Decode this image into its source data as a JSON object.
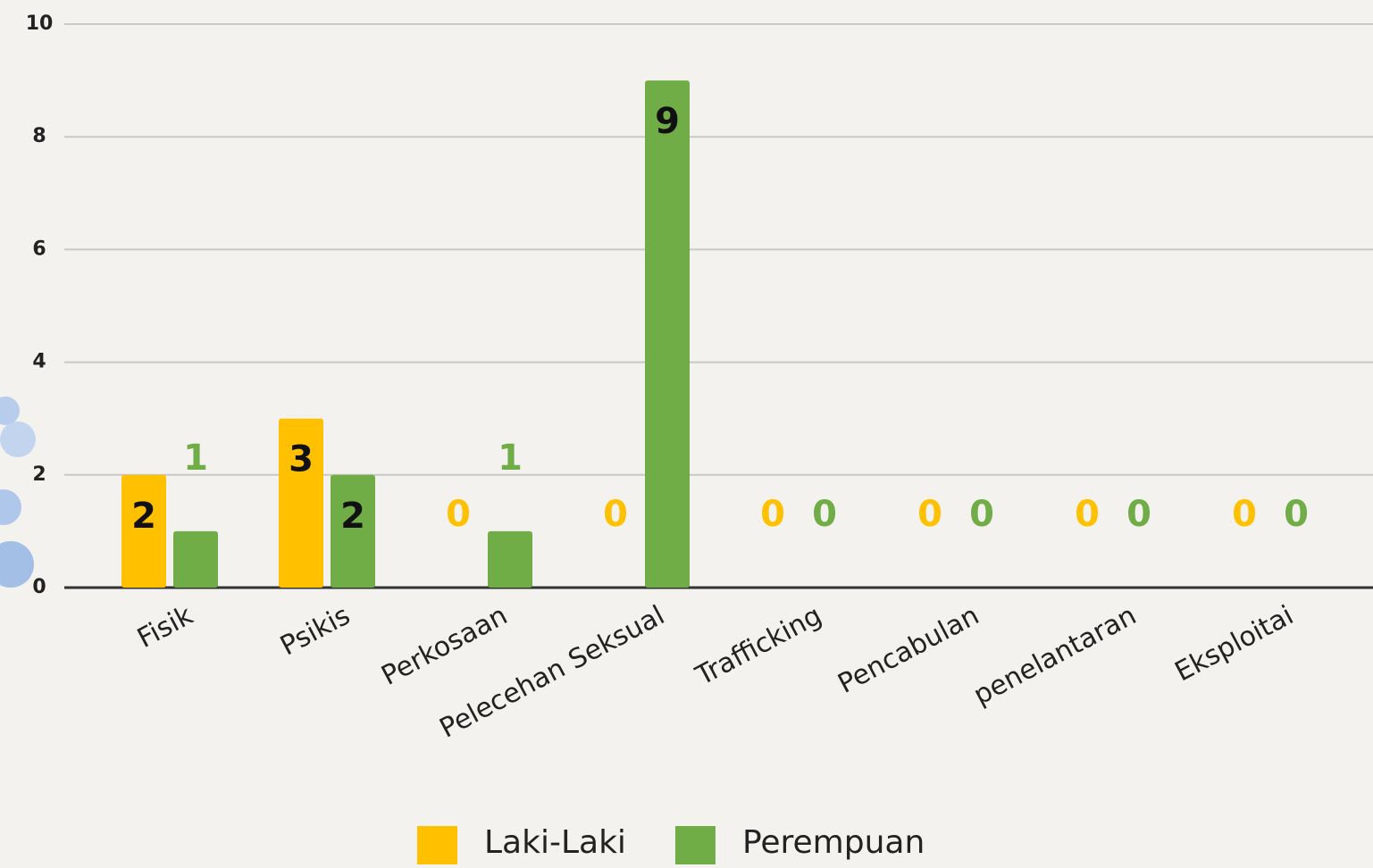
{
  "chart_data": {
    "type": "bar",
    "categories": [
      "Fisik",
      "Psikis",
      "Perkosaan",
      "Pelecehan Seksual",
      "Trafficking",
      "Pencabulan",
      "penelantaran",
      "Eksploitai"
    ],
    "series": [
      {
        "name": "Laki-Laki",
        "color": "#ffc000",
        "values": [
          2,
          3,
          0,
          0,
          0,
          0,
          0,
          0
        ]
      },
      {
        "name": "Perempuan",
        "color": "#70ad47",
        "values": [
          1,
          2,
          1,
          9,
          0,
          0,
          0,
          0
        ]
      }
    ],
    "ylim": [
      0,
      10
    ],
    "yticks": [
      0,
      2,
      4,
      6,
      8,
      10
    ],
    "grid": true,
    "legend": "bottom"
  }
}
